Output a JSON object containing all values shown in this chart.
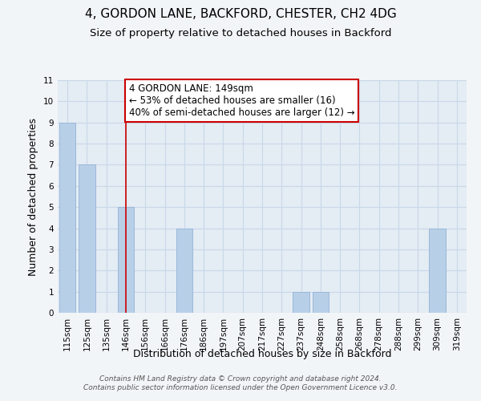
{
  "title": "4, GORDON LANE, BACKFORD, CHESTER, CH2 4DG",
  "subtitle": "Size of property relative to detached houses in Backford",
  "xlabel": "Distribution of detached houses by size in Backford",
  "ylabel": "Number of detached properties",
  "categories": [
    "115sqm",
    "125sqm",
    "135sqm",
    "146sqm",
    "156sqm",
    "166sqm",
    "176sqm",
    "186sqm",
    "197sqm",
    "207sqm",
    "217sqm",
    "227sqm",
    "237sqm",
    "248sqm",
    "258sqm",
    "268sqm",
    "278sqm",
    "288sqm",
    "299sqm",
    "309sqm",
    "319sqm"
  ],
  "values": [
    9,
    7,
    0,
    5,
    0,
    0,
    4,
    0,
    0,
    0,
    0,
    0,
    1,
    1,
    0,
    0,
    0,
    0,
    0,
    4,
    0
  ],
  "bar_color": "#b8cfe8",
  "bar_edge_color": "#9ab8d8",
  "grid_color": "#c8d8e8",
  "annotation_text": "4 GORDON LANE: 149sqm\n← 53% of detached houses are smaller (16)\n40% of semi-detached houses are larger (12) →",
  "annotation_box_color": "#ffffff",
  "annotation_box_edge_color": "#cc0000",
  "vline_color": "#cc0000",
  "vline_x_index": 3,
  "ylim": [
    0,
    11
  ],
  "yticks": [
    0,
    1,
    2,
    3,
    4,
    5,
    6,
    7,
    8,
    9,
    10,
    11
  ],
  "footer_line1": "Contains HM Land Registry data © Crown copyright and database right 2024.",
  "footer_line2": "Contains public sector information licensed under the Open Government Licence v3.0.",
  "title_fontsize": 11,
  "subtitle_fontsize": 9.5,
  "axis_label_fontsize": 9,
  "tick_fontsize": 7.5,
  "annotation_fontsize": 8.5,
  "footer_fontsize": 6.5,
  "background_color": "#f2f5f8",
  "plot_background_color": "#e4ecf4"
}
